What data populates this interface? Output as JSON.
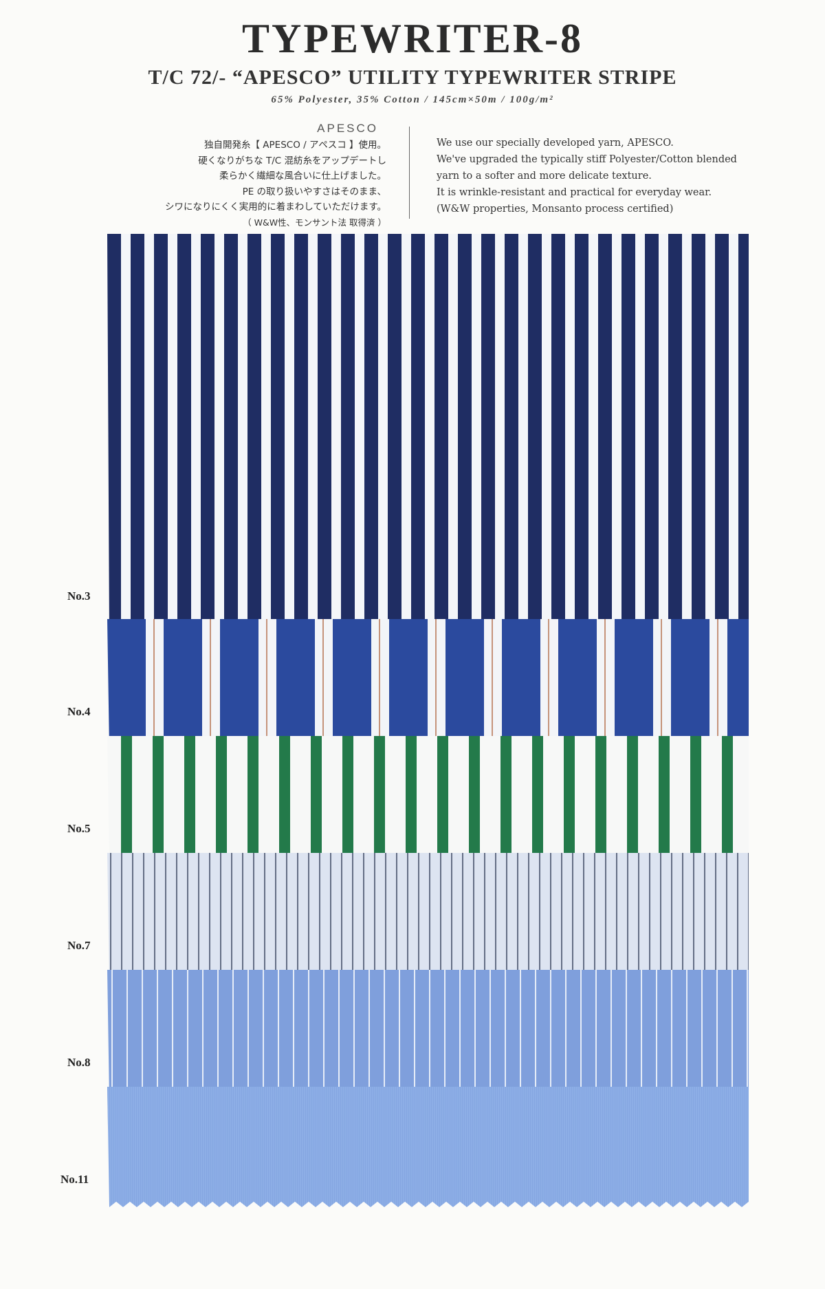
{
  "header": {
    "title": "TYPEWRITER-8",
    "subtitle": "T/C 72/- “APESCO” UTILITY TYPEWRITER STRIPE",
    "spec": "65% Polyester, 35% Cotton / 145cm×50m / 100g/m²"
  },
  "description_jp": {
    "brand": "APESCO",
    "lines": [
      "独自開発糸【 APESCO / アペスコ 】使用。",
      "硬くなりがちな T/C 混紡糸をアップデートし",
      "柔らかく繊細な風合いに仕上げました。",
      "PE の取り扱いやすさはそのまま、",
      "シワになりにくく実用的に着まわしていただけます。"
    ],
    "note": "（ W&W性、モンサント法 取得済 ）"
  },
  "description_en": {
    "lines": [
      "We use our specially developed yarn, APESCO.",
      "We've upgraded the typically stiff Polyester/Cotton blended",
      "yarn to a softer and more delicate texture.",
      "It is wrinkle-resistant and practical for everyday wear.",
      "(W&W properties, Monsanto process certified)"
    ]
  },
  "swatches": [
    {
      "label": "No.3",
      "base": "#f4f6f9",
      "stripe": "#1f2d63",
      "pattern": "wide-navy"
    },
    {
      "label": "No.4",
      "base": "#f3f5f8",
      "stripe": "#2b4a9e",
      "accent": "#b97b5a",
      "pattern": "block-blue"
    },
    {
      "label": "No.5",
      "base": "#f7f8f7",
      "stripe": "#237a4a",
      "pattern": "green-bar"
    },
    {
      "label": "No.7",
      "base": "#dde4f1",
      "stripe": "#3a4560",
      "pattern": "pin-navy"
    },
    {
      "label": "No.8",
      "base": "#7f9fdc",
      "stripe": "#f2f5fb",
      "pattern": "pin-white"
    },
    {
      "label": "No.11",
      "base": "#8daee6",
      "stripe": "#7b9edb",
      "pattern": "chambray"
    }
  ]
}
